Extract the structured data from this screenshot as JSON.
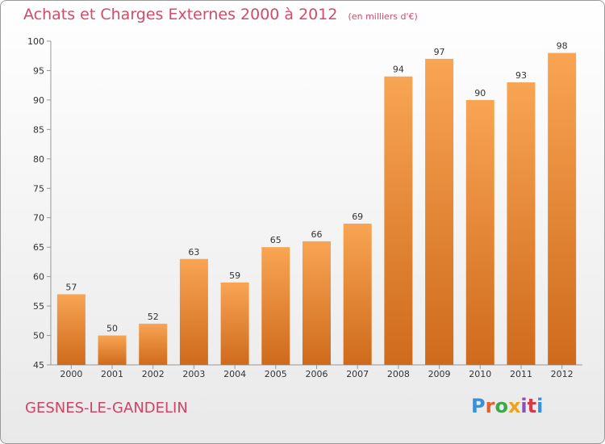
{
  "title": {
    "main": "Achats et Charges Externes 2000 à 2012",
    "unit": "(en milliers d'€)"
  },
  "location": "GESNES-LE-GANDELIN",
  "logo": {
    "text": "Proxiti",
    "letters": [
      "P",
      "r",
      "o",
      "x",
      "i",
      "t",
      "i"
    ]
  },
  "colors": {
    "bar_top": "#f8a553",
    "bar_bottom": "#cf6a1c",
    "title": "#d04c6a",
    "axis": "#999999"
  },
  "chart_data": {
    "type": "bar",
    "title": "Achats et Charges Externes 2000 à 2012",
    "xlabel": "",
    "ylabel": "",
    "categories": [
      "2000",
      "2001",
      "2002",
      "2003",
      "2004",
      "2005",
      "2006",
      "2007",
      "2008",
      "2009",
      "2010",
      "2011",
      "2012"
    ],
    "values": [
      57,
      50,
      52,
      63,
      59,
      65,
      66,
      69,
      94,
      97,
      90,
      93,
      98
    ],
    "ylim": [
      45,
      100
    ],
    "yticks": [
      45,
      50,
      55,
      60,
      65,
      70,
      75,
      80,
      85,
      90,
      95,
      100
    ],
    "grid": false,
    "data_labels": true
  }
}
